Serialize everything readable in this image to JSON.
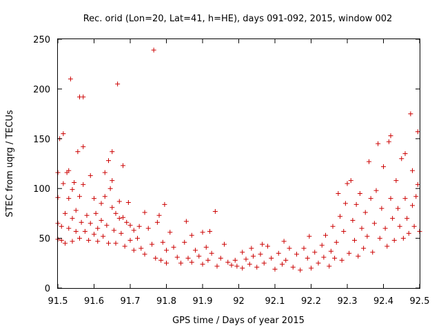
{
  "chart_data": {
    "type": "scatter",
    "title": "Rec. orid (Lon=20, Lat=41, h=HE), days 091-092, 2015, window 002",
    "xlabel": "GPS time / Days of year 2015",
    "ylabel": "STEC from uqrg / TECUs",
    "xlim": [
      91.5,
      92.5
    ],
    "ylim": [
      0,
      250
    ],
    "xticks": [
      91.5,
      91.6,
      91.7,
      91.8,
      91.9,
      92.0,
      92.1,
      92.2,
      92.3,
      92.4,
      92.5
    ],
    "xtick_labels": [
      "91.5",
      "91.6",
      "91.7",
      "91.8",
      "91.9",
      "92",
      "92.1",
      "92.2",
      "92.3",
      "92.4",
      "92.5"
    ],
    "yticks": [
      0,
      50,
      100,
      150,
      200,
      250
    ],
    "ytick_labels": [
      "0",
      "50",
      "100",
      "150",
      "200",
      "250"
    ],
    "grid": false,
    "legend": "none",
    "marker": "+",
    "series": [
      {
        "color": "#cc0000",
        "points": [
          [
            91.5,
            116
          ],
          [
            91.5,
            91
          ],
          [
            91.5,
            65
          ],
          [
            91.5,
            49
          ],
          [
            91.505,
            150
          ],
          [
            91.51,
            62
          ],
          [
            91.51,
            48
          ],
          [
            91.515,
            155
          ],
          [
            91.515,
            105
          ],
          [
            91.52,
            75
          ],
          [
            91.52,
            45
          ],
          [
            91.525,
            116
          ],
          [
            91.53,
            118
          ],
          [
            91.53,
            90
          ],
          [
            91.53,
            60
          ],
          [
            91.535,
            210
          ],
          [
            91.54,
            99
          ],
          [
            91.54,
            70
          ],
          [
            91.54,
            47
          ],
          [
            91.545,
            106
          ],
          [
            91.55,
            78
          ],
          [
            91.55,
            57
          ],
          [
            91.555,
            137
          ],
          [
            91.56,
            192
          ],
          [
            91.56,
            92
          ],
          [
            91.56,
            50
          ],
          [
            91.565,
            66
          ],
          [
            91.57,
            192
          ],
          [
            91.57,
            142
          ],
          [
            91.57,
            104
          ],
          [
            91.575,
            57
          ],
          [
            91.58,
            73
          ],
          [
            91.585,
            48
          ],
          [
            91.59,
            113
          ],
          [
            91.59,
            65
          ],
          [
            91.6,
            90
          ],
          [
            91.6,
            54
          ],
          [
            91.605,
            75
          ],
          [
            91.61,
            60
          ],
          [
            91.61,
            47
          ],
          [
            91.62,
            85
          ],
          [
            91.62,
            68
          ],
          [
            91.625,
            52
          ],
          [
            91.63,
            116
          ],
          [
            91.63,
            92
          ],
          [
            91.635,
            63
          ],
          [
            91.64,
            128
          ],
          [
            91.64,
            45
          ],
          [
            91.645,
            100
          ],
          [
            91.65,
            137
          ],
          [
            91.65,
            108
          ],
          [
            91.65,
            81
          ],
          [
            91.655,
            58
          ],
          [
            91.66,
            75
          ],
          [
            91.66,
            45
          ],
          [
            91.665,
            205
          ],
          [
            91.67,
            87
          ],
          [
            91.67,
            70
          ],
          [
            91.675,
            55
          ],
          [
            91.68,
            123
          ],
          [
            91.68,
            71
          ],
          [
            91.685,
            42
          ],
          [
            91.69,
            66
          ],
          [
            91.695,
            86
          ],
          [
            91.7,
            63
          ],
          [
            91.7,
            48
          ],
          [
            91.71,
            58
          ],
          [
            91.71,
            38
          ],
          [
            91.72,
            50
          ],
          [
            91.725,
            62
          ],
          [
            91.73,
            40
          ],
          [
            91.74,
            76
          ],
          [
            91.74,
            34
          ],
          [
            91.75,
            60
          ],
          [
            91.76,
            44
          ],
          [
            91.765,
            239
          ],
          [
            91.77,
            30
          ],
          [
            91.775,
            66
          ],
          [
            91.78,
            73
          ],
          [
            91.785,
            28
          ],
          [
            91.79,
            46
          ],
          [
            91.795,
            84
          ],
          [
            91.8,
            38
          ],
          [
            91.8,
            25
          ],
          [
            91.81,
            56
          ],
          [
            91.82,
            41
          ],
          [
            91.83,
            31
          ],
          [
            91.84,
            25
          ],
          [
            91.85,
            46
          ],
          [
            91.855,
            67
          ],
          [
            91.86,
            30
          ],
          [
            91.87,
            53
          ],
          [
            91.87,
            26
          ],
          [
            91.88,
            38
          ],
          [
            91.89,
            32
          ],
          [
            91.9,
            56
          ],
          [
            91.9,
            24
          ],
          [
            91.91,
            41
          ],
          [
            91.915,
            28
          ],
          [
            91.92,
            57
          ],
          [
            91.925,
            35
          ],
          [
            91.935,
            77
          ],
          [
            91.94,
            22
          ],
          [
            91.95,
            30
          ],
          [
            91.96,
            44
          ],
          [
            91.97,
            26
          ],
          [
            91.98,
            23
          ],
          [
            91.99,
            28
          ],
          [
            91.995,
            22
          ],
          [
            92.01,
            36
          ],
          [
            92.01,
            20
          ],
          [
            92.02,
            29
          ],
          [
            92.03,
            24
          ],
          [
            92.035,
            40
          ],
          [
            92.04,
            32
          ],
          [
            92.05,
            21
          ],
          [
            92.06,
            34
          ],
          [
            92.065,
            44
          ],
          [
            92.07,
            25
          ],
          [
            92.08,
            42
          ],
          [
            92.09,
            30
          ],
          [
            92.1,
            19
          ],
          [
            92.11,
            35
          ],
          [
            92.12,
            24
          ],
          [
            92.125,
            47
          ],
          [
            92.13,
            28
          ],
          [
            92.14,
            40
          ],
          [
            92.15,
            21
          ],
          [
            92.16,
            34
          ],
          [
            92.17,
            18
          ],
          [
            92.18,
            40
          ],
          [
            92.19,
            30
          ],
          [
            92.195,
            52
          ],
          [
            92.2,
            20
          ],
          [
            92.21,
            36
          ],
          [
            92.22,
            25
          ],
          [
            92.23,
            43
          ],
          [
            92.235,
            31
          ],
          [
            92.24,
            53
          ],
          [
            92.25,
            22
          ],
          [
            92.255,
            37
          ],
          [
            92.26,
            62
          ],
          [
            92.265,
            30
          ],
          [
            92.27,
            46
          ],
          [
            92.275,
            95
          ],
          [
            92.28,
            72
          ],
          [
            92.285,
            28
          ],
          [
            92.29,
            57
          ],
          [
            92.295,
            85
          ],
          [
            92.3,
            105
          ],
          [
            92.305,
            35
          ],
          [
            92.31,
            108
          ],
          [
            92.315,
            68
          ],
          [
            92.32,
            48
          ],
          [
            92.325,
            84
          ],
          [
            92.33,
            32
          ],
          [
            92.335,
            95
          ],
          [
            92.34,
            60
          ],
          [
            92.345,
            40
          ],
          [
            92.35,
            76
          ],
          [
            92.355,
            52
          ],
          [
            92.36,
            127
          ],
          [
            92.365,
            90
          ],
          [
            92.37,
            36
          ],
          [
            92.375,
            65
          ],
          [
            92.38,
            98
          ],
          [
            92.385,
            145
          ],
          [
            92.39,
            50
          ],
          [
            92.395,
            80
          ],
          [
            92.4,
            122
          ],
          [
            92.405,
            60
          ],
          [
            92.41,
            42
          ],
          [
            92.415,
            147
          ],
          [
            92.42,
            153
          ],
          [
            92.42,
            90
          ],
          [
            92.425,
            70
          ],
          [
            92.43,
            48
          ],
          [
            92.435,
            108
          ],
          [
            92.44,
            80
          ],
          [
            92.445,
            62
          ],
          [
            92.45,
            130
          ],
          [
            92.455,
            50
          ],
          [
            92.46,
            135
          ],
          [
            92.46,
            90
          ],
          [
            92.465,
            70
          ],
          [
            92.47,
            55
          ],
          [
            92.475,
            175
          ],
          [
            92.48,
            118
          ],
          [
            92.48,
            83
          ],
          [
            92.485,
            62
          ],
          [
            92.49,
            92
          ],
          [
            92.495,
            157
          ],
          [
            92.495,
            104
          ],
          [
            92.5,
            57
          ]
        ]
      }
    ]
  }
}
